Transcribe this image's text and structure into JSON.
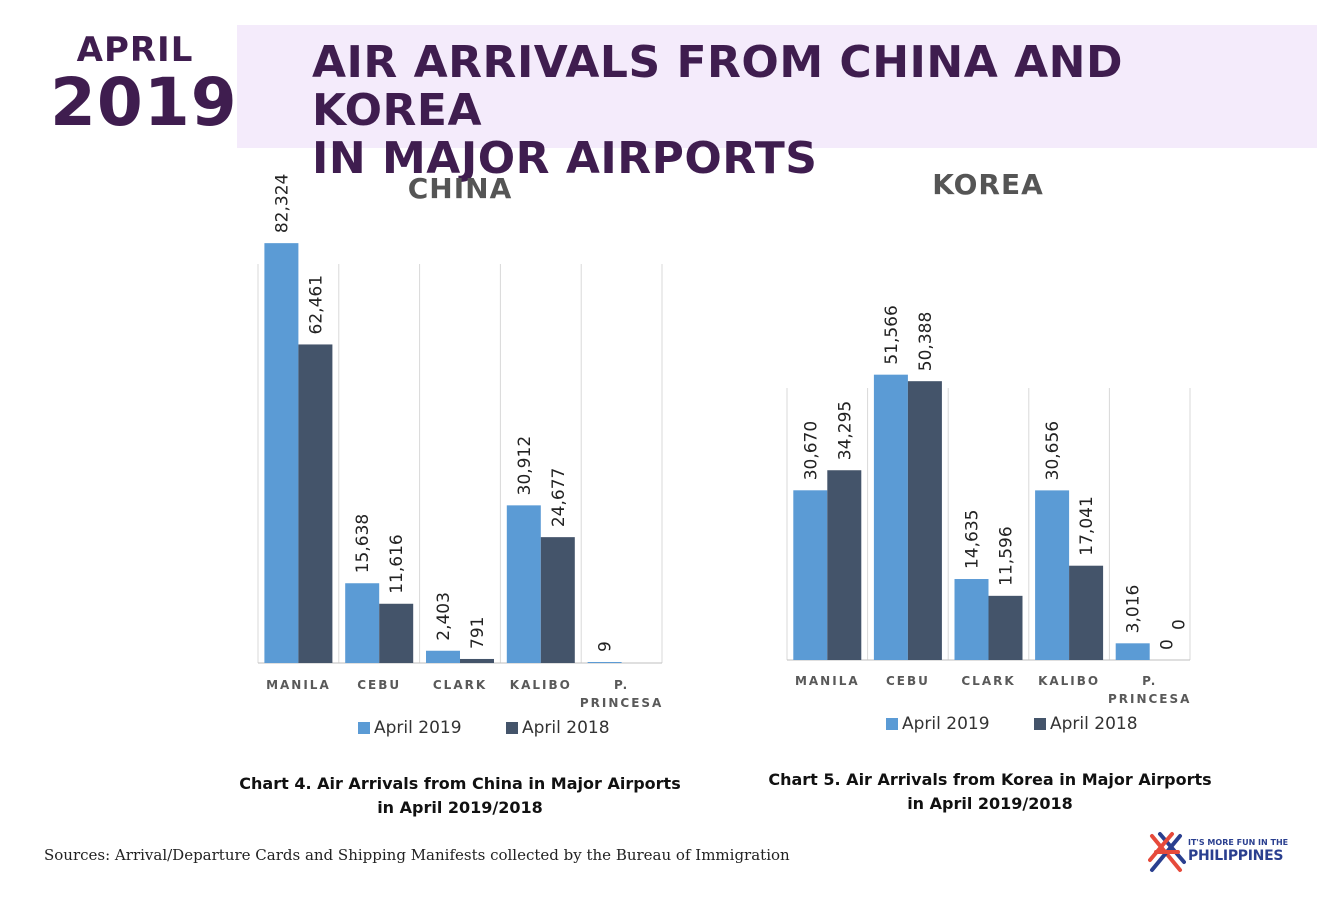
{
  "badge": {
    "month": "APRIL",
    "year": "2019"
  },
  "title": {
    "line1": "AIR ARRIVALS FROM CHINA AND KOREA",
    "line2": "IN MAJOR AIRPORTS"
  },
  "colors": {
    "april_2019": "#5b9bd5",
    "april_2018": "#44546a",
    "title": "#3f1d4f",
    "band": "#f4ebfb"
  },
  "chart_data": [
    {
      "type": "bar",
      "title": "CHINA",
      "categories": [
        "MANILA",
        "CEBU",
        "CLARK",
        "KALIBO",
        "P. PRINCESA"
      ],
      "series": [
        {
          "name": "April 2019",
          "values": [
            82324,
            15638,
            2403,
            30912,
            9
          ],
          "labels": [
            "82,324",
            "15,638",
            "2,403",
            "30,912",
            "9"
          ]
        },
        {
          "name": "April 2018",
          "values": [
            62461,
            11616,
            791,
            24677,
            null
          ],
          "labels": [
            "62,461",
            "11,616",
            "791",
            "24,677",
            ""
          ]
        }
      ],
      "ylim": [
        0,
        90000
      ],
      "legend": "bottom",
      "caption_line1": "Chart 4. Air Arrivals from China in Major Airports",
      "caption_line2": "in April 2019/2018"
    },
    {
      "type": "bar",
      "title": "KOREA",
      "categories": [
        "MANILA",
        "CEBU",
        "CLARK",
        "KALIBO",
        "P. PRINCESA"
      ],
      "series": [
        {
          "name": "April 2019",
          "values": [
            30670,
            51566,
            14635,
            30656,
            3016
          ],
          "labels": [
            "30,670",
            "51,566",
            "14,635",
            "30,656",
            "3,016"
          ]
        },
        {
          "name": "April 2018",
          "values": [
            34295,
            50388,
            11596,
            17041,
            0
          ],
          "labels": [
            "34,295",
            "50,388",
            "11,596",
            "17,041",
            "0"
          ]
        }
      ],
      "ylim": [
        0,
        60000
      ],
      "legend": "bottom",
      "extra_labels": [
        "0"
      ],
      "caption_line1": "Chart 5. Air Arrivals from Korea in Major Airports",
      "caption_line2": "in April 2019/2018"
    }
  ],
  "sources": "Sources: Arrival/Departure Cards and Shipping Manifests collected by the Bureau of Immigration",
  "logo": {
    "tagline": "IT'S MORE FUN IN THE",
    "brand": "PHILIPPINES"
  }
}
